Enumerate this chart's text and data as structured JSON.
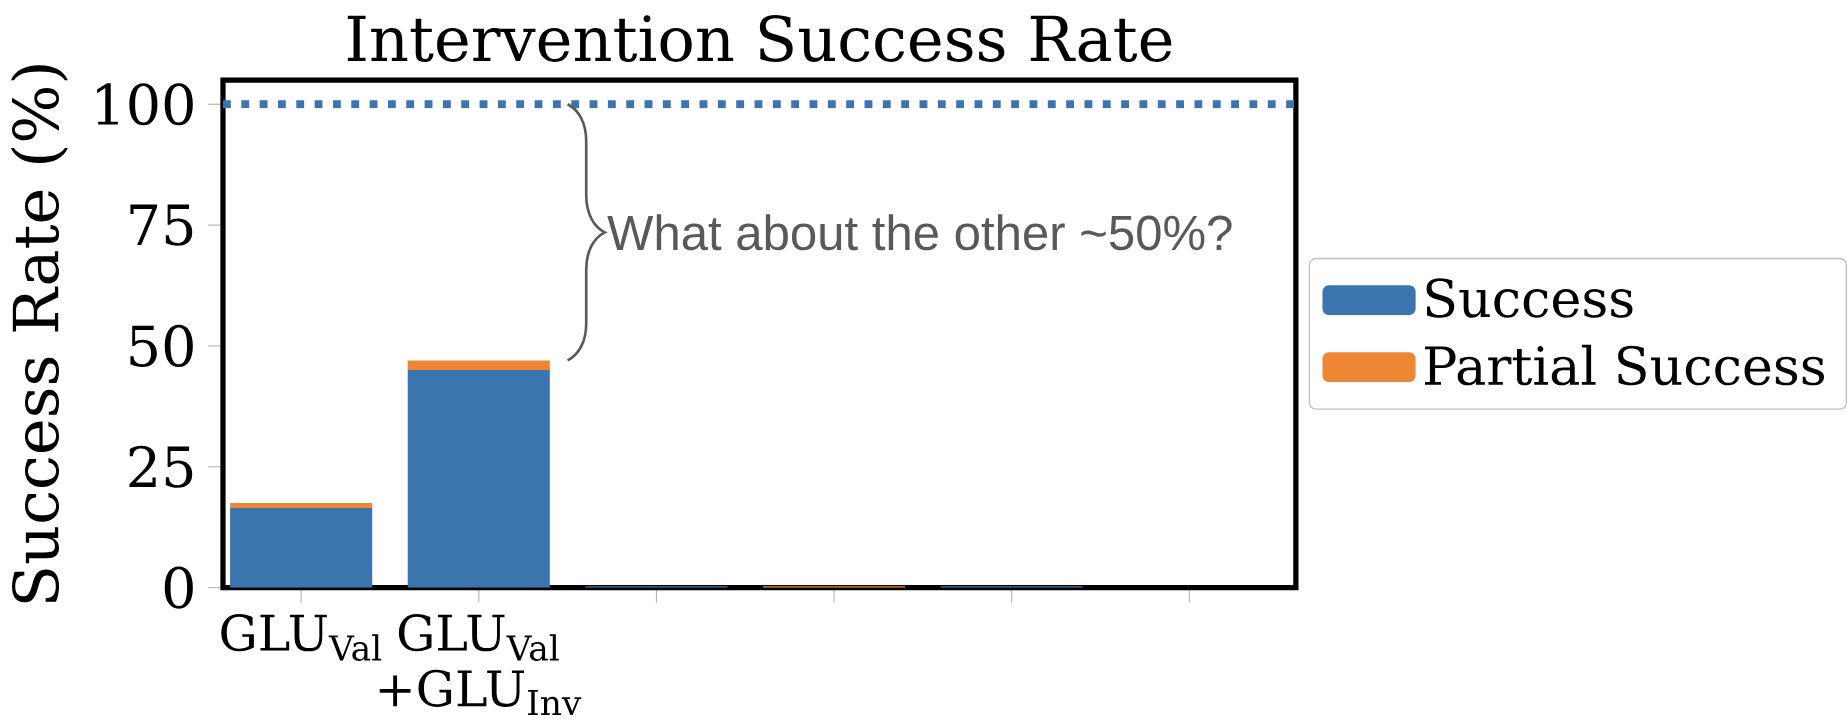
{
  "chart_data": {
    "type": "bar",
    "stacked": true,
    "title": "Intervention Success Rate",
    "ylabel": "Success Rate (%)",
    "categories": [
      "GLU$_{Val}$",
      "GLU$_{Val}$ +GLU$_{Inv}$",
      null,
      null,
      null,
      null
    ],
    "series": [
      {
        "name": "Success",
        "color": "#3a75b0",
        "values": [
          16.5,
          45,
          0.3,
          0,
          0.3,
          0
        ]
      },
      {
        "name": "Partial Success",
        "color": "#ef8636",
        "values": [
          1,
          2,
          0,
          0.3,
          0,
          0
        ]
      }
    ],
    "ylim": [
      0,
      105
    ],
    "yticks": [
      0,
      25,
      50,
      75,
      100
    ],
    "ref_lines": [
      {
        "axis": "y",
        "value": 100,
        "color": "#3a75b0",
        "line_style": "dotted"
      }
    ],
    "annotations": [
      "What about the other ~50%?"
    ],
    "legend": "right",
    "grid": false
  }
}
